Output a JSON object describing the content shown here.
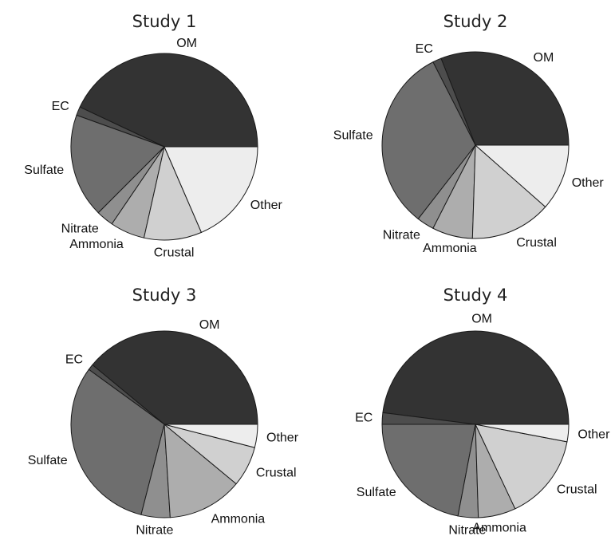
{
  "chart_data": [
    {
      "type": "pie",
      "title": "Study 1",
      "categories": [
        "OM",
        "EC",
        "Sulfate",
        "Nitrate",
        "Ammonia",
        "Crustal",
        "Other"
      ],
      "values": [
        43,
        1.5,
        18,
        3,
        6,
        10,
        18.5
      ],
      "colors": [
        "#333333",
        "#4d4d4d",
        "#6e6e6e",
        "#8f8f8f",
        "#adadad",
        "#d0d0d0",
        "#ededed"
      ]
    },
    {
      "type": "pie",
      "title": "Study 2",
      "categories": [
        "OM",
        "EC",
        "Sulfate",
        "Nitrate",
        "Ammonia",
        "Crustal",
        "Other"
      ],
      "values": [
        31,
        1.5,
        32,
        3,
        7,
        14,
        11.5
      ],
      "colors": [
        "#333333",
        "#4d4d4d",
        "#6e6e6e",
        "#8f8f8f",
        "#adadad",
        "#d0d0d0",
        "#ededed"
      ]
    },
    {
      "type": "pie",
      "title": "Study 3",
      "categories": [
        "OM",
        "EC",
        "Sulfate",
        "Nitrate",
        "Ammonia",
        "Crustal",
        "Other"
      ],
      "values": [
        39,
        1,
        31,
        5,
        13,
        7,
        4
      ],
      "colors": [
        "#333333",
        "#4d4d4d",
        "#6e6e6e",
        "#8f8f8f",
        "#adadad",
        "#d0d0d0",
        "#ededed"
      ]
    },
    {
      "type": "pie",
      "title": "Study 4",
      "categories": [
        "OM",
        "EC",
        "Sulfate",
        "Nitrate",
        "Ammonia",
        "Crustal",
        "Other"
      ],
      "values": [
        48,
        2,
        22,
        3.5,
        6.5,
        15,
        3
      ],
      "colors": [
        "#333333",
        "#4d4d4d",
        "#6e6e6e",
        "#8f8f8f",
        "#adadad",
        "#d0d0d0",
        "#ededed"
      ]
    }
  ]
}
